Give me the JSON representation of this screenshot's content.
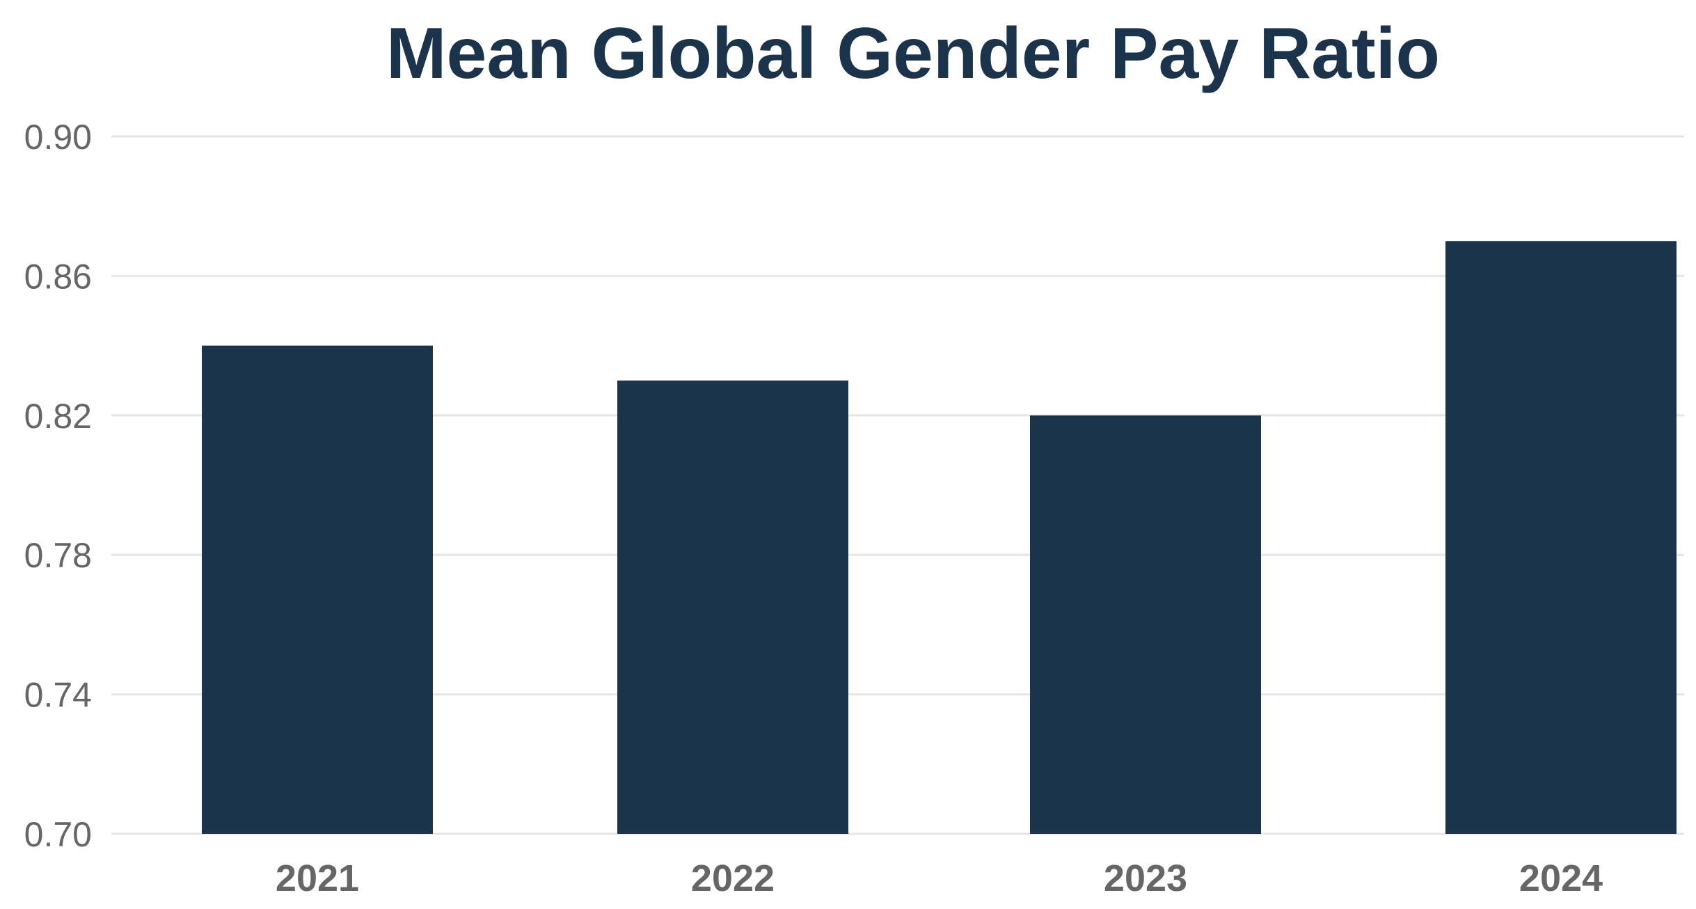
{
  "chart_data": {
    "type": "bar",
    "title": "Mean Global Gender Pay Ratio",
    "xlabel": "",
    "ylabel": "",
    "categories": [
      "2021",
      "2022",
      "2023",
      "2024"
    ],
    "values": [
      0.84,
      0.83,
      0.82,
      0.87
    ],
    "ylim": [
      0.7,
      0.9
    ],
    "yticks": [
      "0.70",
      "0.74",
      "0.78",
      "0.82",
      "0.86",
      "0.90"
    ],
    "grid": true,
    "legend": "none",
    "colors": {
      "bar": "#1b344c",
      "title": "#1b344c",
      "tick_label": "#666666",
      "gridline": "#e6e6e6"
    }
  }
}
